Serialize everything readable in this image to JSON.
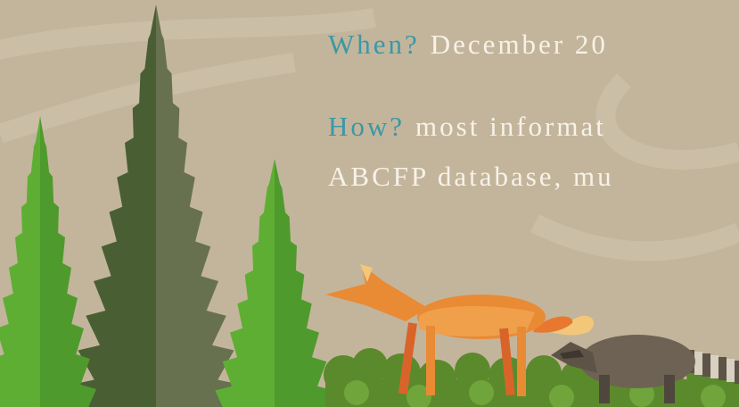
{
  "slide": {
    "when_label": "When?",
    "when_text": "December 20",
    "how_label": "How?",
    "how_text": "most informat",
    "how_text_line2": "ABCFP database, mu"
  }
}
